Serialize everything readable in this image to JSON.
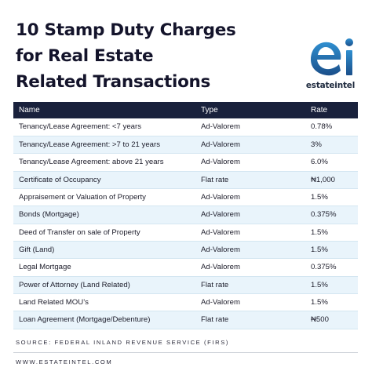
{
  "title": {
    "lines": [
      "10 Stamp Duty Charges",
      "for Real Estate",
      "Related Transactions"
    ]
  },
  "logo": {
    "mark_text": "ei",
    "wordmark": "estateintel",
    "colors": {
      "gradient_top": "#2f8fd0",
      "gradient_bottom": "#1b4f8a"
    }
  },
  "table": {
    "headers": {
      "name": "Name",
      "type": "Type",
      "rate": "Rate"
    },
    "rows": [
      {
        "name": "Tenancy/Lease Agreement: <7 years",
        "type": "Ad-Valorem",
        "rate": "0.78%"
      },
      {
        "name": "Tenancy/Lease Agreement: >7 to 21 years",
        "type": "Ad-Valorem",
        "rate": "3%"
      },
      {
        "name": "Tenancy/Lease Agreement: above 21 years",
        "type": "Ad-Valorem",
        "rate": "6.0%"
      },
      {
        "name": "Certificate of Occupancy",
        "type": "Flat rate",
        "rate": "₦1,000"
      },
      {
        "name": "Appraisement or Valuation of Property",
        "type": "Ad-Valorem",
        "rate": "1.5%"
      },
      {
        "name": "Bonds (Mortgage)",
        "type": "Ad-Valorem",
        "rate": "0.375%"
      },
      {
        "name": "Deed of Transfer on sale of Property",
        "type": "Ad-Valorem",
        "rate": "1.5%"
      },
      {
        "name": "Gift (Land)",
        "type": "Ad-Valorem",
        "rate": "1.5%"
      },
      {
        "name": "Legal Mortgage",
        "type": "Ad-Valorem",
        "rate": "0.375%"
      },
      {
        "name": "Power of Attorney (Land Related)",
        "type": "Flat rate",
        "rate": "1.5%"
      },
      {
        "name": "Land Related MOU’s",
        "type": "Ad-Valorem",
        "rate": "1.5%"
      },
      {
        "name": "Loan Agreement (Mortgage/Debenture)",
        "type": "Flat rate",
        "rate": "₦500"
      }
    ],
    "colors": {
      "header_bg": "#19213c",
      "stripe": "#e9f4fb"
    }
  },
  "footer": {
    "source": "SOURCE: FEDERAL INLAND REVENUE SERVICE (FIRS)",
    "website": "WWW.ESTATEINTEL.COM"
  }
}
